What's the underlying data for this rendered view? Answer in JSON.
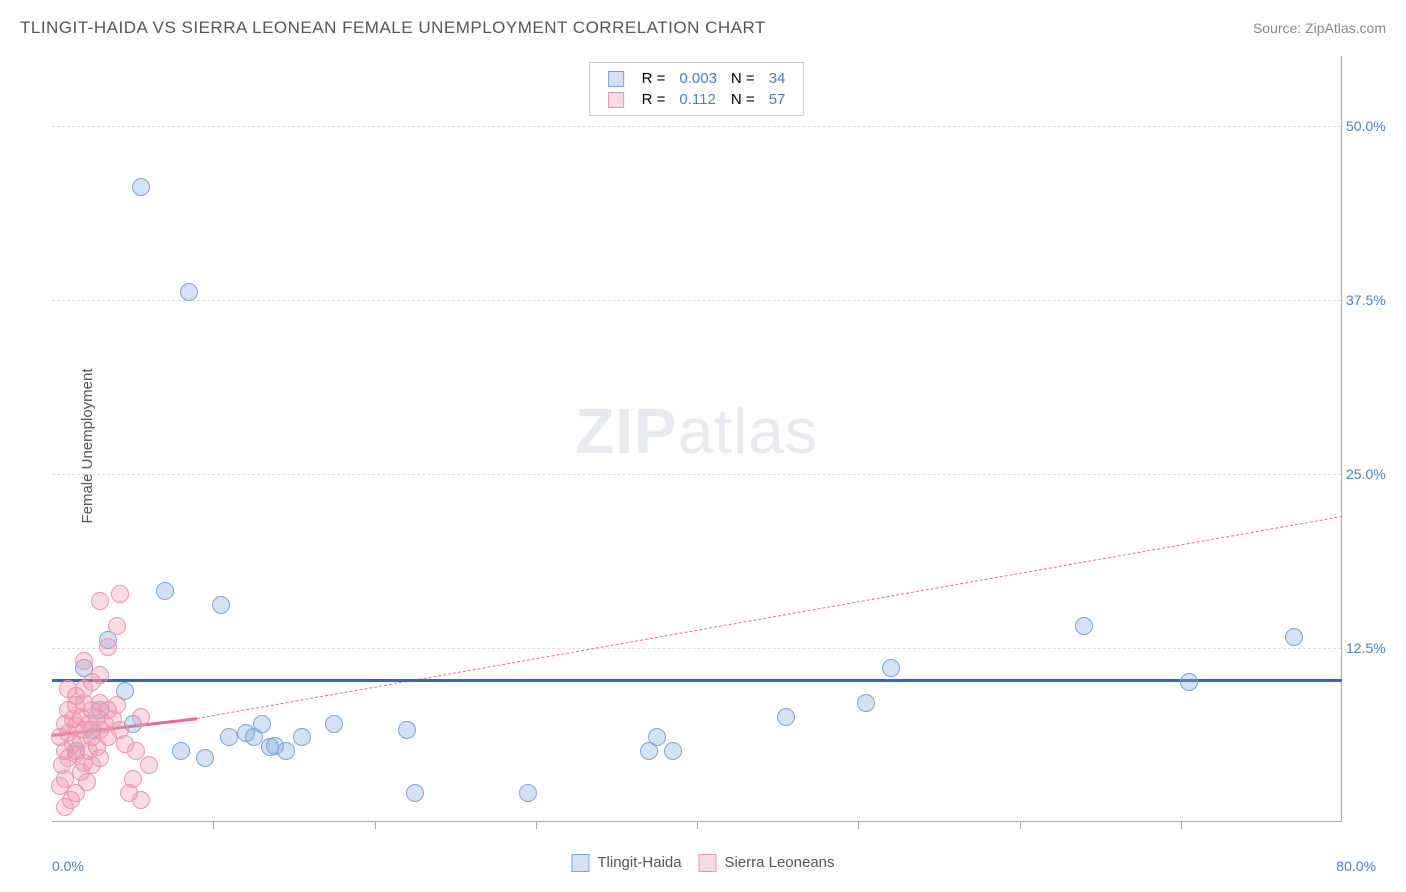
{
  "title": "TLINGIT-HAIDA VS SIERRA LEONEAN FEMALE UNEMPLOYMENT CORRELATION CHART",
  "source": "Source: ZipAtlas.com",
  "ylabel": "Female Unemployment",
  "watermark_bold": "ZIP",
  "watermark_rest": "atlas",
  "chart": {
    "type": "scatter",
    "xlim": [
      0,
      80
    ],
    "ylim": [
      0,
      55
    ],
    "x_min_label": "0.0%",
    "x_max_label": "80.0%",
    "y_ticks": [
      12.5,
      25.0,
      37.5,
      50.0
    ],
    "y_tick_labels": [
      "12.5%",
      "25.0%",
      "37.5%",
      "50.0%"
    ],
    "x_tick_positions": [
      10,
      20,
      30,
      40,
      50,
      60,
      70
    ],
    "grid_color": "#dddddd",
    "axis_color": "#aaaaaa",
    "background_color": "#ffffff",
    "xlim_label_color": "#4a7fbf",
    "ytick_label_color": "#4a7fbf",
    "series": [
      {
        "name": "Tlingit-Haida",
        "key": "tlingit",
        "color_fill": "rgba(130,170,220,0.35)",
        "color_stroke": "#7aa5d6",
        "marker_radius": 9,
        "R": "0.003",
        "N": "34",
        "trend": {
          "x1": 0,
          "y1": 10.3,
          "x2": 80,
          "y2": 10.3,
          "color": "#2e6db3",
          "width": 3,
          "dash": false
        },
        "points": [
          [
            5.5,
            45.5
          ],
          [
            8.5,
            38.0
          ],
          [
            7.0,
            16.5
          ],
          [
            10.5,
            15.5
          ],
          [
            3.5,
            13.0
          ],
          [
            2.0,
            11.0
          ],
          [
            4.5,
            9.3
          ],
          [
            3.0,
            8.0
          ],
          [
            5.0,
            7.0
          ],
          [
            8.0,
            5.0
          ],
          [
            9.5,
            4.5
          ],
          [
            11.0,
            6.0
          ],
          [
            12.0,
            6.3
          ],
          [
            12.5,
            6.0
          ],
          [
            13.0,
            7.0
          ],
          [
            13.5,
            5.3
          ],
          [
            13.8,
            5.4
          ],
          [
            14.5,
            5.0
          ],
          [
            15.5,
            6.0
          ],
          [
            17.5,
            7.0
          ],
          [
            22.0,
            6.5
          ],
          [
            22.5,
            2.0
          ],
          [
            29.5,
            2.0
          ],
          [
            37.5,
            6.0
          ],
          [
            37.0,
            5.0
          ],
          [
            38.5,
            5.0
          ],
          [
            45.5,
            7.5
          ],
          [
            50.5,
            8.5
          ],
          [
            52.0,
            11.0
          ],
          [
            64.0,
            14.0
          ],
          [
            70.5,
            10.0
          ],
          [
            77.0,
            13.2
          ],
          [
            1.5,
            5.0
          ],
          [
            2.5,
            6.5
          ]
        ]
      },
      {
        "name": "Sierra Leoneans",
        "key": "sierra",
        "color_fill": "rgba(240,150,175,0.35)",
        "color_stroke": "#e698b0",
        "marker_radius": 9,
        "R": "0.112",
        "N": "57",
        "trend_solid": {
          "x1": 0,
          "y1": 6.3,
          "x2": 9,
          "y2": 7.5,
          "color": "#e86a91",
          "width": 3,
          "dash": false
        },
        "trend_dash": {
          "x1": 9,
          "y1": 7.5,
          "x2": 80,
          "y2": 22.0,
          "color": "#e86a91",
          "width": 1,
          "dash": true
        },
        "points": [
          [
            0.8,
            1.0
          ],
          [
            1.2,
            1.5
          ],
          [
            0.5,
            2.5
          ],
          [
            1.5,
            2.0
          ],
          [
            0.8,
            3.0
          ],
          [
            1.8,
            3.5
          ],
          [
            2.2,
            2.8
          ],
          [
            0.6,
            4.0
          ],
          [
            1.0,
            4.5
          ],
          [
            1.5,
            4.8
          ],
          [
            2.0,
            4.2
          ],
          [
            2.5,
            4.0
          ],
          [
            0.8,
            5.0
          ],
          [
            1.3,
            5.5
          ],
          [
            1.8,
            5.8
          ],
          [
            2.3,
            5.0
          ],
          [
            2.8,
            5.3
          ],
          [
            3.0,
            4.5
          ],
          [
            0.5,
            6.0
          ],
          [
            1.0,
            6.3
          ],
          [
            1.5,
            6.8
          ],
          [
            2.0,
            6.5
          ],
          [
            2.5,
            6.0
          ],
          [
            3.0,
            6.5
          ],
          [
            3.5,
            6.0
          ],
          [
            0.8,
            7.0
          ],
          [
            1.3,
            7.3
          ],
          [
            1.8,
            7.5
          ],
          [
            2.3,
            7.0
          ],
          [
            2.8,
            7.5
          ],
          [
            3.3,
            7.0
          ],
          [
            3.8,
            7.3
          ],
          [
            4.2,
            6.5
          ],
          [
            4.5,
            5.5
          ],
          [
            1.0,
            8.0
          ],
          [
            1.5,
            8.3
          ],
          [
            2.0,
            8.5
          ],
          [
            2.5,
            8.0
          ],
          [
            3.0,
            8.5
          ],
          [
            3.5,
            8.0
          ],
          [
            4.0,
            8.3
          ],
          [
            1.0,
            9.5
          ],
          [
            1.5,
            9.0
          ],
          [
            2.0,
            9.5
          ],
          [
            2.5,
            10.0
          ],
          [
            3.0,
            10.5
          ],
          [
            2.0,
            11.5
          ],
          [
            3.5,
            12.5
          ],
          [
            4.0,
            14.0
          ],
          [
            3.0,
            15.8
          ],
          [
            4.2,
            16.3
          ],
          [
            5.5,
            1.5
          ],
          [
            6.0,
            4.0
          ],
          [
            5.5,
            7.5
          ],
          [
            5.0,
            3.0
          ],
          [
            4.8,
            2.0
          ],
          [
            5.2,
            5.0
          ]
        ]
      }
    ]
  },
  "legend_top": {
    "R_label": "R =",
    "N_label": "N ="
  },
  "legend_bottom": {
    "a": "Tlingit-Haida",
    "b": "Sierra Leoneans"
  }
}
